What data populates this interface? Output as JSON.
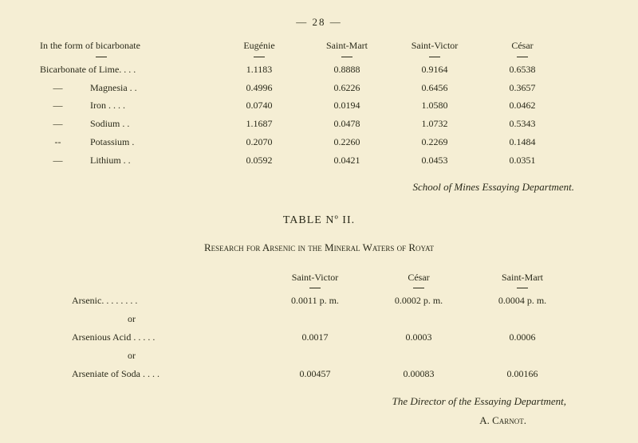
{
  "page_number": "— 28 —",
  "table1": {
    "col_headers": [
      "In the form of bicarbonate",
      "Eugénie",
      "Saint-Mart",
      "Saint-Victor",
      "César"
    ],
    "rows": [
      {
        "label": "Bicarbonate of Lime. . . .",
        "dash": "",
        "vals": [
          "1.1183",
          "0.8888",
          "0.9164",
          "0.6538"
        ]
      },
      {
        "label": "Magnesia . .",
        "dash": "—",
        "vals": [
          "0.4996",
          "0.6226",
          "0.6456",
          "0.3657"
        ]
      },
      {
        "label": "Iron . . . .",
        "dash": "—",
        "vals": [
          "0.0740",
          "0.0194",
          "1.0580",
          "0.0462"
        ]
      },
      {
        "label": "Sodium . .",
        "dash": "—",
        "vals": [
          "1.1687",
          "0.0478",
          "1.0732",
          "0.5343"
        ]
      },
      {
        "label": "Potassium .",
        "dash": "--",
        "vals": [
          "0.2070",
          "0.2260",
          "0.2269",
          "0.1484"
        ]
      },
      {
        "label": "Lithium . .",
        "dash": "—",
        "vals": [
          "0.0592",
          "0.0421",
          "0.0453",
          "0.0351"
        ]
      }
    ],
    "attribution": "School of Mines Essaying Department."
  },
  "table2": {
    "title": "TABLE Nº II.",
    "subtitle": "Research for Arsenic in the Mineral Waters of Royat",
    "col_headers": [
      "",
      "Saint-Victor",
      "César",
      "Saint-Mart"
    ],
    "rows": [
      {
        "label": "Arsenic. . . . . . . .",
        "vals": [
          "0.0011 p. m.",
          "0.0002 p. m.",
          "0.0004 p. m."
        ]
      },
      {
        "label": "or",
        "vals": [
          "",
          "",
          ""
        ]
      },
      {
        "label": "Arsenious Acid . . . . .",
        "vals": [
          "0.0017",
          "0.0003",
          "0.0006"
        ]
      },
      {
        "label": "or",
        "vals": [
          "",
          "",
          ""
        ]
      },
      {
        "label": "Arseniate of Soda . . . .",
        "vals": [
          "0.00457",
          "0.00083",
          "0.00166"
        ]
      }
    ],
    "director": "The Director of the Essaying Department,",
    "signer": "A. Carnot."
  }
}
